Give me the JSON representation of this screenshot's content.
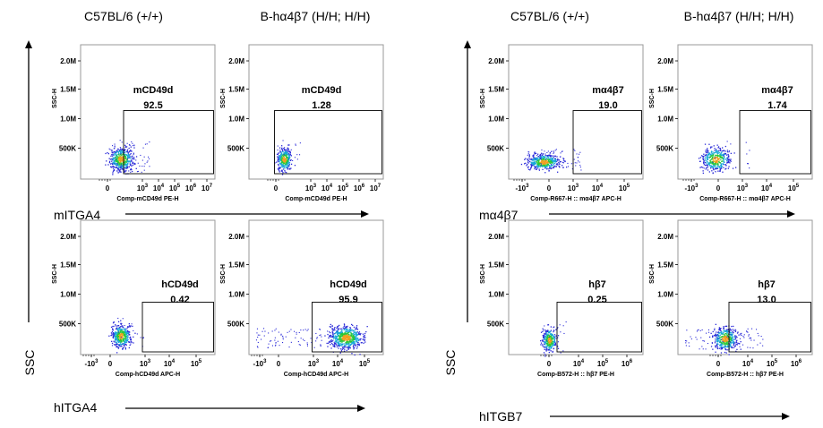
{
  "chart_data": {
    "type": "scatter",
    "figures": [
      {
        "ssc_label": "SSC",
        "column_headers": [
          "C57BL/6 (+/+)",
          "B-hα4β7 (H/H; H/H)"
        ],
        "rows": [
          {
            "marker_label": "mITGA4",
            "x_axis_label": "Comp-mCD49d PE-H",
            "x_ticks": [
              {
                "b": "0",
                "e": ""
              },
              {
                "b": "10",
                "e": "3"
              },
              {
                "b": "10",
                "e": "4"
              },
              {
                "b": "10",
                "e": "5"
              },
              {
                "b": "10",
                "e": "6"
              },
              {
                "b": "10",
                "e": "7"
              }
            ],
            "panels": [
              {
                "gate": "mCD49d",
                "percent": "92.5",
                "y_axis_label": "SSC-H"
              },
              {
                "gate": "mCD49d",
                "percent": "1.28",
                "y_axis_label": "SSC-H"
              }
            ]
          },
          {
            "marker_label": "hITGA4",
            "x_axis_label": "Comp-hCD49d APC-H",
            "x_ticks": [
              {
                "b": "-10",
                "e": "3"
              },
              {
                "b": "0",
                "e": ""
              },
              {
                "b": "10",
                "e": "3"
              },
              {
                "b": "10",
                "e": "4"
              },
              {
                "b": "10",
                "e": "5"
              }
            ],
            "panels": [
              {
                "gate": "hCD49d",
                "percent": "0.42",
                "y_axis_label": "SSC-H"
              },
              {
                "gate": "hCD49d",
                "percent": "95.9",
                "y_axis_label": "SSC-H"
              }
            ]
          }
        ]
      },
      {
        "ssc_label": "SSC",
        "column_headers": [
          "C57BL/6 (+/+)",
          "B-hα4β7 (H/H; H/H)"
        ],
        "rows": [
          {
            "marker_label": "mα4β7",
            "x_axis_label": "Comp-R667-H :: mα4β7 APC-H",
            "x_ticks": [
              {
                "b": "-10",
                "e": "3"
              },
              {
                "b": "0",
                "e": ""
              },
              {
                "b": "10",
                "e": "3"
              },
              {
                "b": "10",
                "e": "4"
              },
              {
                "b": "10",
                "e": "5"
              }
            ],
            "panels": [
              {
                "gate": "mα4β7",
                "percent": "19.0",
                "y_axis_label": "SSC-H"
              },
              {
                "gate": "mα4β7",
                "percent": "1.74",
                "y_axis_label": "SSC-H"
              }
            ]
          },
          {
            "marker_label": "hITGB7",
            "x_axis_label": "Comp-B572-H :: hβ7 PE-H",
            "x_ticks": [
              {
                "b": "0",
                "e": ""
              },
              {
                "b": "10",
                "e": "4"
              },
              {
                "b": "10",
                "e": "5"
              },
              {
                "b": "10",
                "e": "6"
              }
            ],
            "panels": [
              {
                "gate": "hβ7",
                "percent": "0.25",
                "y_axis_label": "SSC-H"
              },
              {
                "gate": "hβ7",
                "percent": "13.0",
                "y_axis_label": "SSC-H"
              }
            ]
          }
        ]
      }
    ],
    "y_ticks": [
      "2.0M",
      "1.5M",
      "1.0M",
      "500K"
    ]
  }
}
